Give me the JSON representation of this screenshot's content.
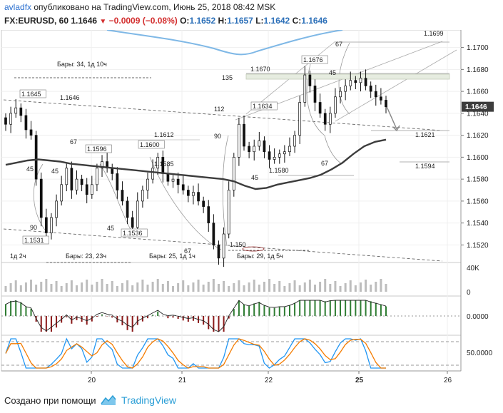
{
  "header": {
    "author": "avladfx",
    "published_text": "опубликовано на TradingView.com, Июнь 25, 2018 08:42 MSK",
    "symbol": "FX:EURUSD, 60",
    "last": "1.1646",
    "change": "−0.0009 (−0.08%)",
    "o_label": "O:",
    "o_value": "1.1652",
    "h_label": "H:",
    "h_value": "1.1657",
    "l_label": "L:",
    "l_value": "1.1642",
    "c_label": "C:",
    "c_value": "1.1646"
  },
  "footer": {
    "credit": "Создано при помощи",
    "brand": "TradingView"
  },
  "colors": {
    "up": "#2e7d32",
    "down": "#8b1a1a",
    "ma": "#3c3c3c",
    "price_label_bg": "#3d3d3d",
    "blue_line": "#7fb8e6",
    "stoch_k": "#2196f3",
    "stoch_d": "#f57c00",
    "volume": "#bdbdbd"
  },
  "chart_data": {
    "type": "candlestick",
    "x_axis": {
      "labels": [
        "20",
        "21",
        "22",
        "25",
        "26"
      ]
    },
    "y_axis": {
      "range": [
        1.1504,
        1.1716
      ],
      "labels": [
        "1.1520",
        "1.1540",
        "1.1560",
        "1.1580",
        "1.1600",
        "1.1620",
        "1.1640",
        "1.1660",
        "1.1680",
        "1.1700"
      ],
      "current_price_label": "1.1646"
    },
    "closes": [
      1.163,
      1.164,
      1.1645,
      1.1638,
      1.1625,
      1.162,
      1.158,
      1.1545,
      1.1531,
      1.1545,
      1.156,
      1.1575,
      1.159,
      1.157,
      1.158,
      1.1575,
      1.1566,
      1.1575,
      1.159,
      1.1596,
      1.159,
      1.1585,
      1.157,
      1.156,
      1.1545,
      1.1536,
      1.156,
      1.157,
      1.158,
      1.159,
      1.16,
      1.1585,
      1.1578,
      1.158,
      1.1575,
      1.157,
      1.1565,
      1.1568,
      1.156,
      1.1555,
      1.154,
      1.152,
      1.1508,
      1.153,
      1.157,
      1.16,
      1.163,
      1.161,
      1.1605,
      1.161,
      1.1615,
      1.1605,
      1.1598,
      1.16,
      1.1603,
      1.1605,
      1.161,
      1.162,
      1.165,
      1.1675,
      1.1665,
      1.165,
      1.164,
      1.163,
      1.164,
      1.1655,
      1.166,
      1.1665,
      1.167,
      1.1668,
      1.1672,
      1.1665,
      1.166,
      1.1655,
      1.1652,
      1.1646
    ],
    "ma_values": [
      1.1593,
      1.1595,
      1.1597,
      1.1598,
      1.1597,
      1.1596,
      1.1594,
      1.1593,
      1.1592,
      1.1591,
      1.159,
      1.1589,
      1.1588,
      1.1587,
      1.1586,
      1.1585,
      1.1584,
      1.1583,
      1.1582,
      1.1581,
      1.158,
      1.1578,
      1.1574,
      1.1571,
      1.1572,
      1.1575,
      1.1577,
      1.1579,
      1.1581,
      1.1584,
      1.1589,
      1.1595,
      1.1603,
      1.161,
      1.1614,
      1.1616
    ],
    "price_labels": [
      "1.1645",
      "1.1646",
      "1.1596",
      "1.1600",
      "1.1612",
      "1.1585",
      "1.1531",
      "1.1536",
      "1.150",
      "1.1634",
      "1.1670",
      "1.1676",
      "1.1699",
      "1.1621",
      "1.1594",
      "1.1580"
    ],
    "angle_labels": [
      "45",
      "67",
      "45",
      "90",
      "45",
      "67",
      "112",
      "90",
      "45",
      "135",
      "67",
      "45",
      "67"
    ],
    "bar_labels": [
      "Бары: 34, 1д 10ч",
      "Бары: 23, 23ч",
      "1д 2ч",
      "Бары: 25, 1д 1ч",
      "Бары: 29, 1д 5ч"
    ],
    "volume": {
      "label": "40K",
      "zero_label": "0"
    },
    "macd": {
      "label": "0.0000"
    },
    "stochastic": {
      "label": "50.0000"
    }
  }
}
